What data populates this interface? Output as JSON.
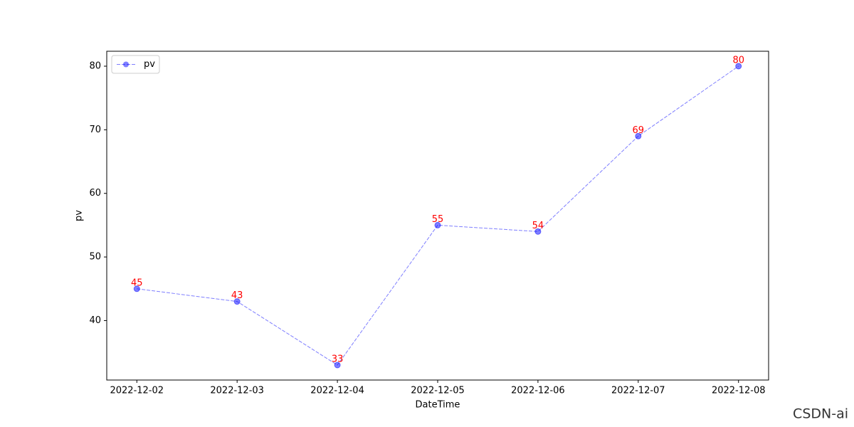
{
  "chart_data": {
    "type": "line",
    "x": [
      "2022-12-02",
      "2022-12-03",
      "2022-12-04",
      "2022-12-05",
      "2022-12-06",
      "2022-12-07",
      "2022-12-08"
    ],
    "series": [
      {
        "name": "pv",
        "color": "#0000ff",
        "alpha": 0.5,
        "linestyle": "dashed",
        "marker": "o",
        "values": [
          45,
          43,
          33,
          55,
          54,
          69,
          80
        ]
      }
    ],
    "value_label_color": "#ff0000",
    "xlabel": "DateTime",
    "ylabel": "pv",
    "ylim": [
      30.65,
      82.35
    ],
    "yticks": [
      40,
      50,
      60,
      70,
      80
    ],
    "legend": "upper left",
    "grid": false
  },
  "watermark": "CSDN-ai"
}
